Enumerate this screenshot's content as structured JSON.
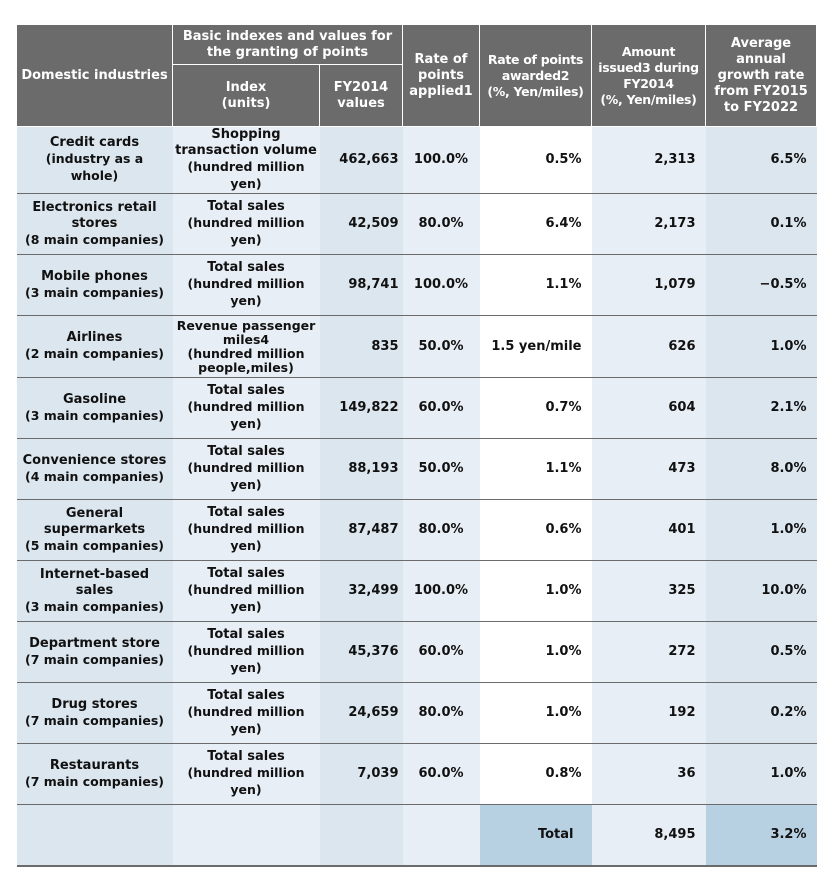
{
  "header": {
    "domestic_industries": "Domestic industries",
    "basic_group": "Basic indexes and values for the granting of points",
    "index": "Index",
    "index_units": "(units)",
    "fy2014": "FY2014",
    "fy2014_values": "values",
    "rate_applied": "Rate of points applied1",
    "rate_awarded": "Rate of points awarded2",
    "rate_awarded_units": "(%, Yen/miles)",
    "amount_issued": "Amount issued3 during FY2014",
    "amount_issued_units": "(%, Yen/miles)",
    "avg_growth": "Average annual growth rate from FY2015 to FY2022"
  },
  "rows": [
    {
      "industry": "Credit cards",
      "industry_sub": "(industry as a whole)",
      "index": "Shopping transaction volume",
      "index_units": "(hundred million yen)",
      "fy2014": "462,663",
      "rate_applied": "100.0%",
      "rate_awarded": "0.5%",
      "amount": "2,313",
      "growth": "6.5%"
    },
    {
      "industry": "Electronics retail stores",
      "industry_sub": "(8 main companies)",
      "index": "Total sales",
      "index_units": "(hundred million yen)",
      "fy2014": "42,509",
      "rate_applied": "80.0%",
      "rate_awarded": "6.4%",
      "amount": "2,173",
      "growth": "0.1%"
    },
    {
      "industry": "Mobile phones",
      "industry_sub": "(3 main companies)",
      "index": "Total sales",
      "index_units": "(hundred million yen)",
      "fy2014": "98,741",
      "rate_applied": "100.0%",
      "rate_awarded": "1.1%",
      "amount": "1,079",
      "growth": "−0.5%"
    },
    {
      "industry": "Airlines",
      "industry_sub": "(2 main companies)",
      "index": "Revenue passenger miles4",
      "index_units": "(hundred million people,miles)",
      "fy2014": "835",
      "rate_applied": "50.0%",
      "rate_awarded": "1.5 yen/mile",
      "amount": "626",
      "growth": "1.0%"
    },
    {
      "industry": "Gasoline",
      "industry_sub": "(3 main companies)",
      "index": "Total sales",
      "index_units": "(hundred million yen)",
      "fy2014": "149,822",
      "rate_applied": "60.0%",
      "rate_awarded": "0.7%",
      "amount": "604",
      "growth": "2.1%"
    },
    {
      "industry": "Convenience stores",
      "industry_sub": "(4 main companies)",
      "index": "Total sales",
      "index_units": "(hundred million yen)",
      "fy2014": "88,193",
      "rate_applied": "50.0%",
      "rate_awarded": "1.1%",
      "amount": "473",
      "growth": "8.0%"
    },
    {
      "industry": "General supermarkets",
      "industry_sub": "(5 main companies)",
      "index": "Total sales",
      "index_units": "(hundred million yen)",
      "fy2014": "87,487",
      "rate_applied": "80.0%",
      "rate_awarded": "0.6%",
      "amount": "401",
      "growth": "1.0%"
    },
    {
      "industry": "Internet-based sales",
      "industry_sub": "(3 main companies)",
      "index": "Total sales",
      "index_units": "(hundred million yen)",
      "fy2014": "32,499",
      "rate_applied": "100.0%",
      "rate_awarded": "1.0%",
      "amount": "325",
      "growth": "10.0%"
    },
    {
      "industry": "Department store",
      "industry_sub": "(7 main companies)",
      "index": "Total sales",
      "index_units": "(hundred million yen)",
      "fy2014": "45,376",
      "rate_applied": "60.0%",
      "rate_awarded": "1.0%",
      "amount": "272",
      "growth": "0.5%"
    },
    {
      "industry": "Drug stores",
      "industry_sub": "(7 main companies)",
      "index": "Total sales",
      "index_units": "(hundred million yen)",
      "fy2014": "24,659",
      "rate_applied": "80.0%",
      "rate_awarded": "1.0%",
      "amount": "192",
      "growth": "0.2%"
    },
    {
      "industry": "Restaurants",
      "industry_sub": "(7 main companies)",
      "index": "Total sales",
      "index_units": "(hundred million yen)",
      "fy2014": "7,039",
      "rate_applied": "60.0%",
      "rate_awarded": "0.8%",
      "amount": "36",
      "growth": "1.0%"
    }
  ],
  "total": {
    "label": "Total",
    "amount": "8,495",
    "growth": "3.2%"
  }
}
